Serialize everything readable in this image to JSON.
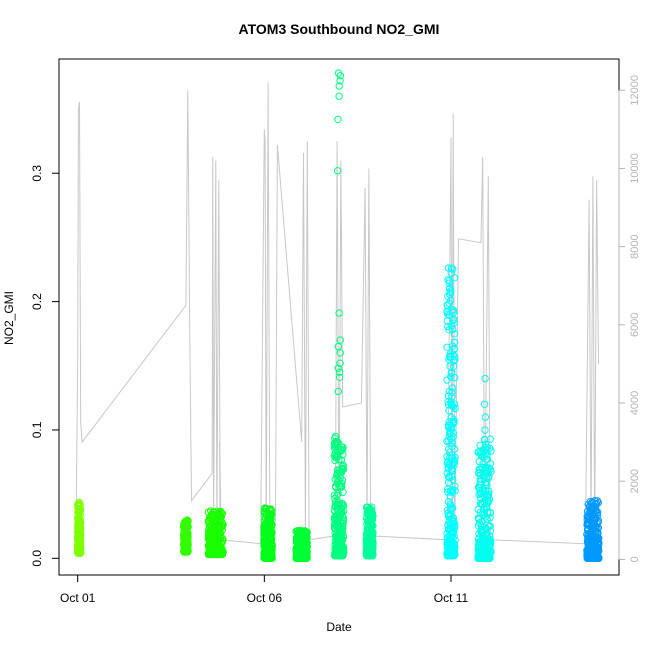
{
  "chart_data": {
    "type": "scatter",
    "title": "ATOM3 Southbound NO2_GMI",
    "xlabel": "Date",
    "ylabel": "NO2_GMI",
    "x_ticks": [
      "Oct 01",
      "Oct 06",
      "Oct 11"
    ],
    "x_tick_days": [
      1,
      6,
      11
    ],
    "xlim": [
      0.5,
      15.5
    ],
    "ylim": [
      -0.013,
      0.389
    ],
    "y_ticks": [
      0.0,
      0.1,
      0.2,
      0.3
    ],
    "y_tick_labels": [
      "0.0",
      "0.1",
      "0.2",
      "0.3"
    ],
    "y2lim": [
      -400,
      12800
    ],
    "y2_ticks": [
      0,
      2000,
      4000,
      6000,
      8000,
      10000,
      12000
    ],
    "y2_tick_labels": [
      "0",
      "2000",
      "4000",
      "6000",
      "8000",
      "10000",
      "12000"
    ],
    "colors": {
      "day1": "#80ff00",
      "day4": "#33ff00",
      "day6": "#00ff33",
      "day8": "#00ff80",
      "day11": "#00ffff",
      "day14": "#0099ff",
      "altitude": "#c8c8c8",
      "axis": "#000000",
      "axis_right": "#b4b4b4"
    },
    "no2_clusters": [
      {
        "day": 1.04,
        "width": 0.08,
        "min": 0.004,
        "max": 0.044,
        "outliers": [],
        "color": "#80ff00"
      },
      {
        "day": 3.9,
        "width": 0.12,
        "min": 0.005,
        "max": 0.03,
        "outliers": [],
        "color": "#33ff00"
      },
      {
        "day": 4.7,
        "width": 0.4,
        "min": 0.003,
        "max": 0.037,
        "outliers": [],
        "color": "#1aff00"
      },
      {
        "day": 6.1,
        "width": 0.22,
        "min": 0.0,
        "max": 0.04,
        "outliers": [],
        "color": "#00ff1a"
      },
      {
        "day": 7.0,
        "width": 0.3,
        "min": 0.0,
        "max": 0.022,
        "outliers": [],
        "color": "#00ff33"
      },
      {
        "day": 8.0,
        "width": 0.25,
        "min": 0.002,
        "max": 0.095,
        "outliers": [
          0.13,
          0.141,
          0.145,
          0.148,
          0.152,
          0.16,
          0.165,
          0.17,
          0.191,
          0.302,
          0.342,
          0.36,
          0.368,
          0.372,
          0.376,
          0.378
        ],
        "color": "#00ff80"
      },
      {
        "day": 8.82,
        "width": 0.18,
        "min": 0.002,
        "max": 0.04,
        "outliers": [],
        "color": "#00ff99"
      },
      {
        "day": 11.0,
        "width": 0.22,
        "min": 0.002,
        "max": 0.23,
        "outliers": [],
        "color": "#00ffff"
      },
      {
        "day": 11.9,
        "width": 0.35,
        "min": 0.0,
        "max": 0.093,
        "outliers": [
          0.1,
          0.11,
          0.12,
          0.14
        ],
        "color": "#00ffee"
      },
      {
        "day": 14.8,
        "width": 0.32,
        "min": 0.0,
        "max": 0.046,
        "outliers": [],
        "color": "#0099ff"
      }
    ],
    "altitude_path_m": [
      [
        0.95,
        400
      ],
      [
        1.0,
        5000
      ],
      [
        1.02,
        11500
      ],
      [
        1.05,
        11700
      ],
      [
        1.08,
        3500
      ],
      [
        1.12,
        3000
      ],
      [
        3.9,
        6500
      ],
      [
        3.95,
        12000
      ],
      [
        4.0,
        6000
      ],
      [
        4.05,
        1500
      ],
      [
        4.6,
        2200
      ],
      [
        4.62,
        10300
      ],
      [
        4.64,
        1000
      ],
      [
        4.7,
        10200
      ],
      [
        4.73,
        700
      ],
      [
        4.78,
        9700
      ],
      [
        4.82,
        400
      ],
      [
        4.8,
        3000
      ],
      [
        4.85,
        500
      ],
      [
        5.9,
        400
      ],
      [
        6.0,
        11000
      ],
      [
        6.02,
        10700
      ],
      [
        6.05,
        600
      ],
      [
        6.1,
        12200
      ],
      [
        6.15,
        500
      ],
      [
        6.3,
        1000
      ],
      [
        6.35,
        10600
      ],
      [
        7.0,
        3000
      ],
      [
        7.05,
        10400
      ],
      [
        7.1,
        700
      ],
      [
        7.15,
        10700
      ],
      [
        7.2,
        500
      ],
      [
        7.9,
        600
      ],
      [
        7.95,
        10700
      ],
      [
        8.0,
        500
      ],
      [
        8.05,
        10200
      ],
      [
        8.1,
        3900
      ],
      [
        8.6,
        4000
      ],
      [
        8.7,
        9500
      ],
      [
        8.75,
        900
      ],
      [
        8.8,
        10000
      ],
      [
        8.85,
        600
      ],
      [
        10.9,
        500
      ],
      [
        11.0,
        10800
      ],
      [
        11.03,
        800
      ],
      [
        11.06,
        11400
      ],
      [
        11.1,
        600
      ],
      [
        11.2,
        8200
      ],
      [
        11.8,
        8100
      ],
      [
        11.85,
        10300
      ],
      [
        11.9,
        600
      ],
      [
        12.0,
        9800
      ],
      [
        12.05,
        500
      ],
      [
        14.6,
        400
      ],
      [
        14.7,
        9200
      ],
      [
        14.75,
        700
      ],
      [
        14.8,
        9800
      ],
      [
        14.85,
        500
      ],
      [
        14.9,
        9700
      ],
      [
        14.95,
        5000
      ]
    ]
  }
}
